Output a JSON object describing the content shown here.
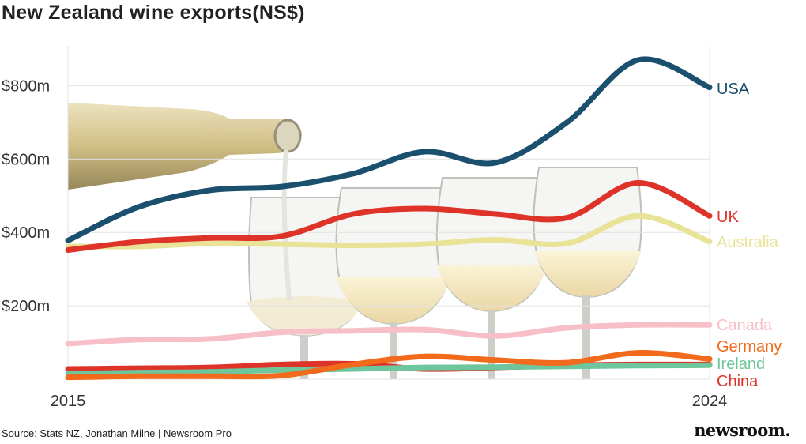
{
  "title": "New Zealand wine exports(NS$)",
  "source": {
    "prefix": "Source: ",
    "link": "Stats NZ",
    "suffix": ", Jonathan Milne | Newsroom Pro"
  },
  "logo": "newsroom.",
  "chart_data": {
    "type": "line",
    "title": "New Zealand wine exports(NS$)",
    "xlabel": "",
    "ylabel": "",
    "x": [
      2015,
      2016,
      2017,
      2018,
      2019,
      2020,
      2021,
      2022,
      2023,
      2024
    ],
    "x_tick_labels": [
      "2015",
      "2024"
    ],
    "y_tick_values": [
      200,
      400,
      600,
      800
    ],
    "y_tick_labels": [
      "$200m",
      "$400m",
      "$600m",
      "$800m"
    ],
    "ylim": [
      0,
      900
    ],
    "grid": true,
    "legend": "labels at line ends (right)",
    "series": [
      {
        "name": "USA",
        "color": "#1b4f6e",
        "values": [
          378,
          470,
          515,
          525,
          560,
          620,
          590,
          700,
          870,
          795
        ]
      },
      {
        "name": "UK",
        "color": "#dd3328",
        "values": [
          352,
          375,
          385,
          390,
          450,
          465,
          450,
          440,
          535,
          445
        ]
      },
      {
        "name": "Australia",
        "color": "#e8e396",
        "values": [
          362,
          362,
          370,
          368,
          365,
          368,
          380,
          370,
          445,
          375
        ]
      },
      {
        "name": "Canada",
        "color": "#f7bfc8",
        "values": [
          97,
          108,
          110,
          128,
          132,
          135,
          118,
          140,
          148,
          148
        ]
      },
      {
        "name": "Germany",
        "color": "#f26a1b",
        "values": [
          5,
          8,
          8,
          10,
          40,
          62,
          52,
          45,
          72,
          55
        ]
      },
      {
        "name": "Ireland",
        "color": "#6ec69c",
        "values": [
          15,
          18,
          20,
          25,
          28,
          32,
          33,
          35,
          37,
          38
        ]
      },
      {
        "name": "China",
        "color": "#dd3328",
        "values": [
          28,
          30,
          32,
          40,
          42,
          28,
          32,
          38,
          40,
          40
        ]
      }
    ]
  }
}
